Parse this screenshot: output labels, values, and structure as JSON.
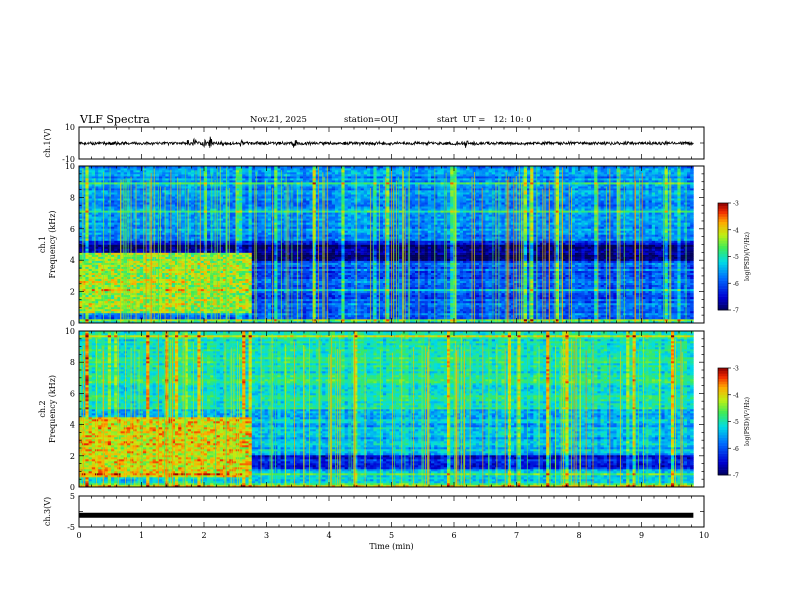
{
  "header": {
    "title": "VLF Spectra",
    "date": "Nov.21, 2025",
    "station": "station=OUJ",
    "start_ut": "start  UT =   12: 10: 0"
  },
  "chart_data": [
    {
      "id": "ch1-waveform",
      "type": "line",
      "ylabel": "ch.1(V)",
      "ylim": [
        -10,
        10
      ],
      "yticks": [
        "10",
        "-10"
      ],
      "xlim": [
        0,
        10
      ],
      "baseline": -0.2,
      "noise_amplitude": 1.0,
      "bursts": [
        {
          "t": 1.75,
          "amp": 3.0
        },
        {
          "t": 1.85,
          "amp": 4.5
        },
        {
          "t": 2.0,
          "amp": 3.5
        },
        {
          "t": 2.1,
          "amp": 5.0
        },
        {
          "t": 2.6,
          "amp": 3.5
        },
        {
          "t": 3.45,
          "amp": 4.5
        },
        {
          "t": 6.2,
          "amp": 4.0
        }
      ]
    },
    {
      "id": "ch1-spectrogram",
      "type": "heatmap",
      "ylabel": "ch.1\nFrequency (kHz)",
      "ylim": [
        0,
        10
      ],
      "yticks": [
        "0",
        "2",
        "4",
        "6",
        "8",
        "10"
      ],
      "xlim": [
        0,
        10
      ],
      "data_end_min": 9.83,
      "colorbar": {
        "label": "log(PSD)(V²/Hz)",
        "min": -7,
        "max": -3,
        "ticks": [
          "-3",
          "-4",
          "-5",
          "-6",
          "-7"
        ]
      },
      "noisy_interval_min": [
        0,
        2.72
      ],
      "quiet_band_khz": [
        4.0,
        5.3
      ],
      "base_level_low": -5.9,
      "base_level_high": -5.6,
      "burst_level": -4.3
    },
    {
      "id": "ch2-spectrogram",
      "type": "heatmap",
      "ylabel": "ch.2\nFrequency (kHz)",
      "ylim": [
        0,
        10
      ],
      "yticks": [
        "0",
        "2",
        "4",
        "6",
        "8",
        "10"
      ],
      "xlim": [
        0,
        10
      ],
      "data_end_min": 9.83,
      "colorbar": {
        "label": "log(PSD)(V²/Hz)",
        "min": -7,
        "max": -3,
        "ticks": [
          "-3",
          "-4",
          "-5",
          "-6",
          "-7"
        ]
      },
      "noisy_interval_min": [
        0,
        2.72
      ],
      "quiet_band_khz": [
        1.2,
        2.0
      ],
      "base_level_low": -5.4,
      "base_level_high": -5.0,
      "burst_level": -4.0
    },
    {
      "id": "ch3-waveform",
      "type": "line",
      "ylabel": "ch.3(V)",
      "ylim": [
        -5,
        5
      ],
      "yticks": [
        "5",
        "-5"
      ],
      "xlim": [
        0,
        10
      ],
      "xticks": [
        "0",
        "1",
        "2",
        "3",
        "4",
        "5",
        "6",
        "7",
        "8",
        "9",
        "10"
      ],
      "xlabel": "Time (min)",
      "level": -1.2
    }
  ],
  "colors": {
    "frame": "#000000",
    "trace": "#000000"
  }
}
